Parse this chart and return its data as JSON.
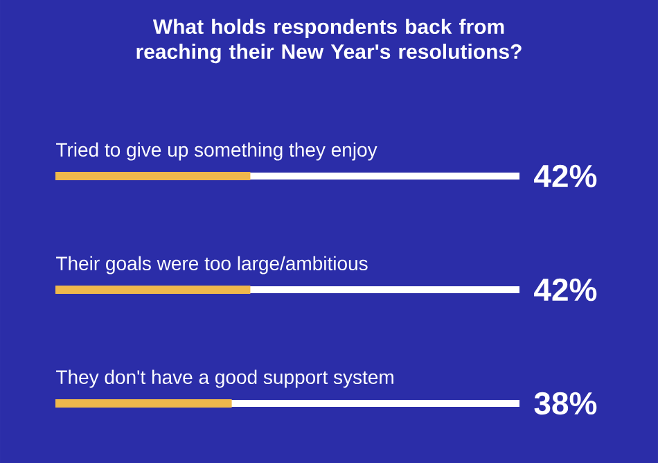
{
  "chart_data": {
    "type": "bar",
    "orientation": "horizontal",
    "title": "What holds respondents back from reaching their New Year's resolutions?",
    "categories": [
      "Tried to give up something they enjoy",
      "Their goals were too large/ambitious",
      "They don't have a good support system"
    ],
    "values": [
      42,
      42,
      38
    ],
    "value_labels": [
      "42%",
      "42%",
      "38%"
    ],
    "color": "#efb84c",
    "xlim": [
      0,
      100
    ]
  }
}
